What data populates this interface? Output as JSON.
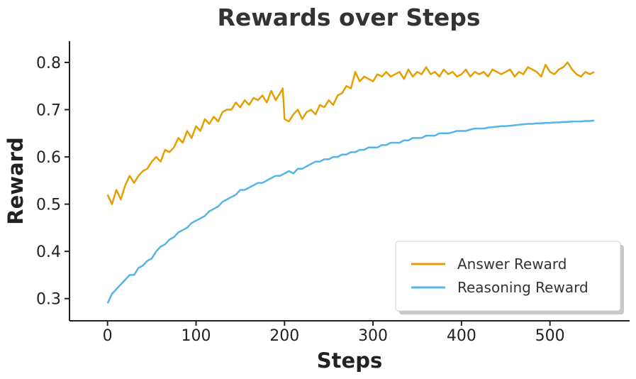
{
  "chart_data": {
    "type": "line",
    "title": "Rewards over Steps",
    "xlabel": "Steps",
    "ylabel": "Reward",
    "xlim": [
      -43,
      590
    ],
    "ylim": [
      0.253,
      0.845
    ],
    "xticks": [
      0,
      100,
      200,
      300,
      400,
      500
    ],
    "yticks": [
      0.3,
      0.4,
      0.5,
      0.6,
      0.7,
      0.8
    ],
    "xtick_labels": [
      "0",
      "100",
      "200",
      "300",
      "400",
      "500"
    ],
    "ytick_labels": [
      "0.3",
      "0.4",
      "0.5",
      "0.6",
      "0.7",
      "0.8"
    ],
    "grid": false,
    "legend_position": "lower-right",
    "series": [
      {
        "name": "Answer Reward",
        "color": "#E69F00",
        "x": [
          0,
          5,
          10,
          15,
          20,
          25,
          30,
          35,
          40,
          45,
          50,
          55,
          60,
          65,
          70,
          75,
          80,
          85,
          90,
          95,
          100,
          105,
          110,
          115,
          120,
          125,
          130,
          135,
          140,
          145,
          150,
          155,
          160,
          165,
          170,
          175,
          180,
          185,
          190,
          195,
          198,
          200,
          205,
          210,
          215,
          220,
          225,
          230,
          235,
          240,
          245,
          250,
          255,
          260,
          265,
          270,
          275,
          280,
          285,
          290,
          295,
          300,
          305,
          310,
          315,
          320,
          325,
          330,
          335,
          340,
          345,
          350,
          355,
          360,
          365,
          370,
          375,
          380,
          385,
          390,
          395,
          400,
          405,
          410,
          415,
          420,
          425,
          430,
          435,
          440,
          445,
          450,
          455,
          460,
          465,
          470,
          475,
          480,
          485,
          490,
          495,
          500,
          505,
          510,
          515,
          520,
          525,
          530,
          535,
          540,
          545,
          550
        ],
        "y": [
          0.52,
          0.5,
          0.53,
          0.51,
          0.54,
          0.56,
          0.545,
          0.56,
          0.57,
          0.575,
          0.59,
          0.6,
          0.59,
          0.615,
          0.61,
          0.62,
          0.64,
          0.63,
          0.655,
          0.64,
          0.665,
          0.655,
          0.68,
          0.67,
          0.685,
          0.675,
          0.695,
          0.7,
          0.7,
          0.715,
          0.705,
          0.72,
          0.71,
          0.725,
          0.72,
          0.73,
          0.715,
          0.74,
          0.72,
          0.735,
          0.745,
          0.68,
          0.675,
          0.69,
          0.7,
          0.68,
          0.695,
          0.7,
          0.69,
          0.71,
          0.705,
          0.72,
          0.71,
          0.73,
          0.735,
          0.75,
          0.745,
          0.78,
          0.76,
          0.77,
          0.765,
          0.76,
          0.775,
          0.77,
          0.78,
          0.77,
          0.775,
          0.78,
          0.765,
          0.785,
          0.77,
          0.78,
          0.775,
          0.79,
          0.775,
          0.78,
          0.77,
          0.785,
          0.775,
          0.78,
          0.77,
          0.775,
          0.785,
          0.77,
          0.78,
          0.775,
          0.78,
          0.77,
          0.785,
          0.78,
          0.775,
          0.78,
          0.785,
          0.77,
          0.78,
          0.775,
          0.79,
          0.785,
          0.78,
          0.77,
          0.795,
          0.78,
          0.775,
          0.785,
          0.79,
          0.8,
          0.785,
          0.775,
          0.77,
          0.78,
          0.775,
          0.78
        ]
      },
      {
        "name": "Reasoning Reward",
        "color": "#56B4E9",
        "x": [
          0,
          5,
          10,
          15,
          20,
          25,
          30,
          35,
          40,
          45,
          50,
          55,
          60,
          65,
          70,
          75,
          80,
          85,
          90,
          95,
          100,
          105,
          110,
          115,
          120,
          125,
          130,
          135,
          140,
          145,
          150,
          155,
          160,
          165,
          170,
          175,
          180,
          185,
          190,
          195,
          200,
          205,
          210,
          215,
          220,
          225,
          230,
          235,
          240,
          245,
          250,
          255,
          260,
          265,
          270,
          275,
          280,
          285,
          290,
          295,
          300,
          305,
          310,
          315,
          320,
          325,
          330,
          335,
          340,
          345,
          350,
          355,
          360,
          365,
          370,
          375,
          380,
          385,
          390,
          395,
          400,
          405,
          410,
          415,
          420,
          425,
          430,
          435,
          440,
          445,
          450,
          455,
          460,
          465,
          470,
          475,
          480,
          485,
          490,
          495,
          500,
          505,
          510,
          515,
          520,
          525,
          530,
          535,
          540,
          545,
          550
        ],
        "y": [
          0.29,
          0.31,
          0.32,
          0.33,
          0.34,
          0.35,
          0.35,
          0.365,
          0.37,
          0.38,
          0.385,
          0.4,
          0.41,
          0.415,
          0.425,
          0.43,
          0.44,
          0.445,
          0.45,
          0.46,
          0.465,
          0.47,
          0.475,
          0.485,
          0.49,
          0.495,
          0.505,
          0.51,
          0.515,
          0.52,
          0.53,
          0.53,
          0.535,
          0.54,
          0.545,
          0.545,
          0.55,
          0.555,
          0.56,
          0.56,
          0.565,
          0.57,
          0.565,
          0.575,
          0.575,
          0.58,
          0.585,
          0.59,
          0.59,
          0.595,
          0.595,
          0.6,
          0.6,
          0.605,
          0.605,
          0.61,
          0.61,
          0.615,
          0.615,
          0.62,
          0.62,
          0.62,
          0.625,
          0.625,
          0.63,
          0.63,
          0.63,
          0.635,
          0.635,
          0.64,
          0.64,
          0.64,
          0.645,
          0.645,
          0.645,
          0.65,
          0.65,
          0.65,
          0.652,
          0.655,
          0.655,
          0.655,
          0.658,
          0.66,
          0.66,
          0.66,
          0.662,
          0.663,
          0.664,
          0.665,
          0.665,
          0.666,
          0.667,
          0.668,
          0.669,
          0.67,
          0.67,
          0.671,
          0.671,
          0.672,
          0.672,
          0.673,
          0.673,
          0.674,
          0.674,
          0.675,
          0.675,
          0.675,
          0.676,
          0.676,
          0.677
        ]
      }
    ]
  }
}
